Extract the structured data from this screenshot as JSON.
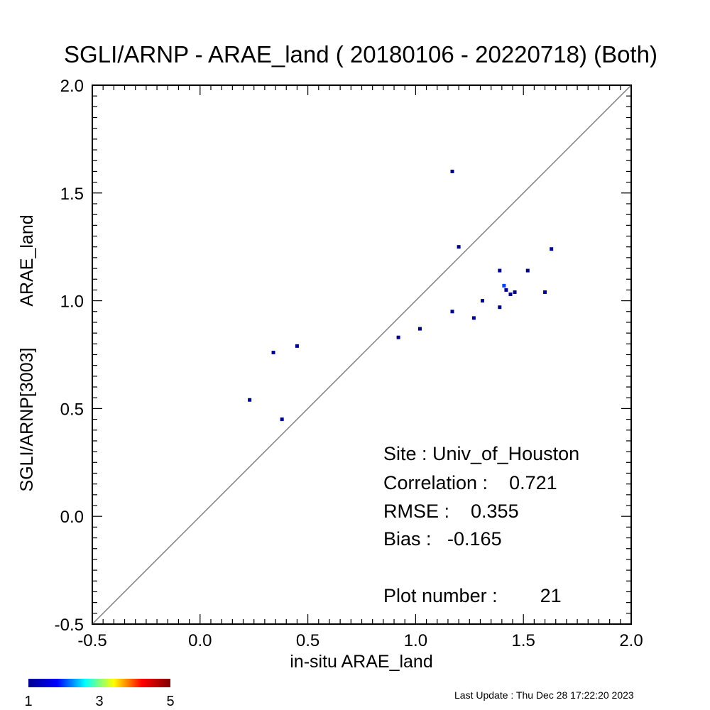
{
  "chart_data": {
    "type": "scatter",
    "title": "SGLI/ARNP - ARAE_land ( 20180106 - 20220718) (Both)",
    "xlabel": "in-situ ARAE_land",
    "ylabel_main": "SGLI/ARNP[3003]",
    "ylabel_sub": "ARAE_land",
    "xlim": [
      -0.5,
      2.0
    ],
    "ylim": [
      -0.5,
      2.0
    ],
    "x_ticks": [
      -0.5,
      0.0,
      0.5,
      1.0,
      1.5,
      2.0
    ],
    "x_tick_labels": [
      "-0.5",
      "0.0",
      "0.5",
      "1.0",
      "1.5",
      "2.0"
    ],
    "y_ticks": [
      -0.5,
      0.0,
      0.5,
      1.0,
      1.5,
      2.0
    ],
    "y_tick_labels": [
      "-0.5",
      "0.0",
      "0.5",
      "1.0",
      "1.5",
      "2.0"
    ],
    "one_to_one_line": true,
    "points": [
      {
        "x": 1.17,
        "y": 1.6,
        "count": 1
      },
      {
        "x": 1.2,
        "y": 1.25,
        "count": 1
      },
      {
        "x": 1.63,
        "y": 1.24,
        "count": 1
      },
      {
        "x": 1.39,
        "y": 1.14,
        "count": 1
      },
      {
        "x": 1.52,
        "y": 1.14,
        "count": 1
      },
      {
        "x": 1.41,
        "y": 1.07,
        "count": 2
      },
      {
        "x": 1.42,
        "y": 1.05,
        "count": 1
      },
      {
        "x": 1.46,
        "y": 1.04,
        "count": 1
      },
      {
        "x": 1.44,
        "y": 1.03,
        "count": 1
      },
      {
        "x": 1.6,
        "y": 1.04,
        "count": 1
      },
      {
        "x": 1.31,
        "y": 1.0,
        "count": 1
      },
      {
        "x": 1.39,
        "y": 0.97,
        "count": 1
      },
      {
        "x": 1.17,
        "y": 0.95,
        "count": 1
      },
      {
        "x": 1.27,
        "y": 0.92,
        "count": 1
      },
      {
        "x": 1.02,
        "y": 0.87,
        "count": 1
      },
      {
        "x": 0.92,
        "y": 0.83,
        "count": 1
      },
      {
        "x": 0.45,
        "y": 0.79,
        "count": 1
      },
      {
        "x": 0.34,
        "y": 0.76,
        "count": 1
      },
      {
        "x": 0.23,
        "y": 0.54,
        "count": 1
      },
      {
        "x": 0.38,
        "y": 0.45,
        "count": 1
      }
    ],
    "stats": {
      "site": "Site : Univ_of_Houston",
      "correlation": "Correlation :    0.721",
      "rmse": "RMSE :    0.355",
      "bias": "Bias :   -0.165",
      "plot_number": "Plot number :        21"
    },
    "colorbar": {
      "min": 1,
      "max": 5,
      "tick_labels": [
        "1",
        "3",
        "5"
      ],
      "colors": [
        "#00008f",
        "#0000ff",
        "#00ffff",
        "#ffff00",
        "#ff0000",
        "#800000"
      ]
    },
    "footer": "Last Update : Thu Dec 28 17:22:20 2023"
  }
}
